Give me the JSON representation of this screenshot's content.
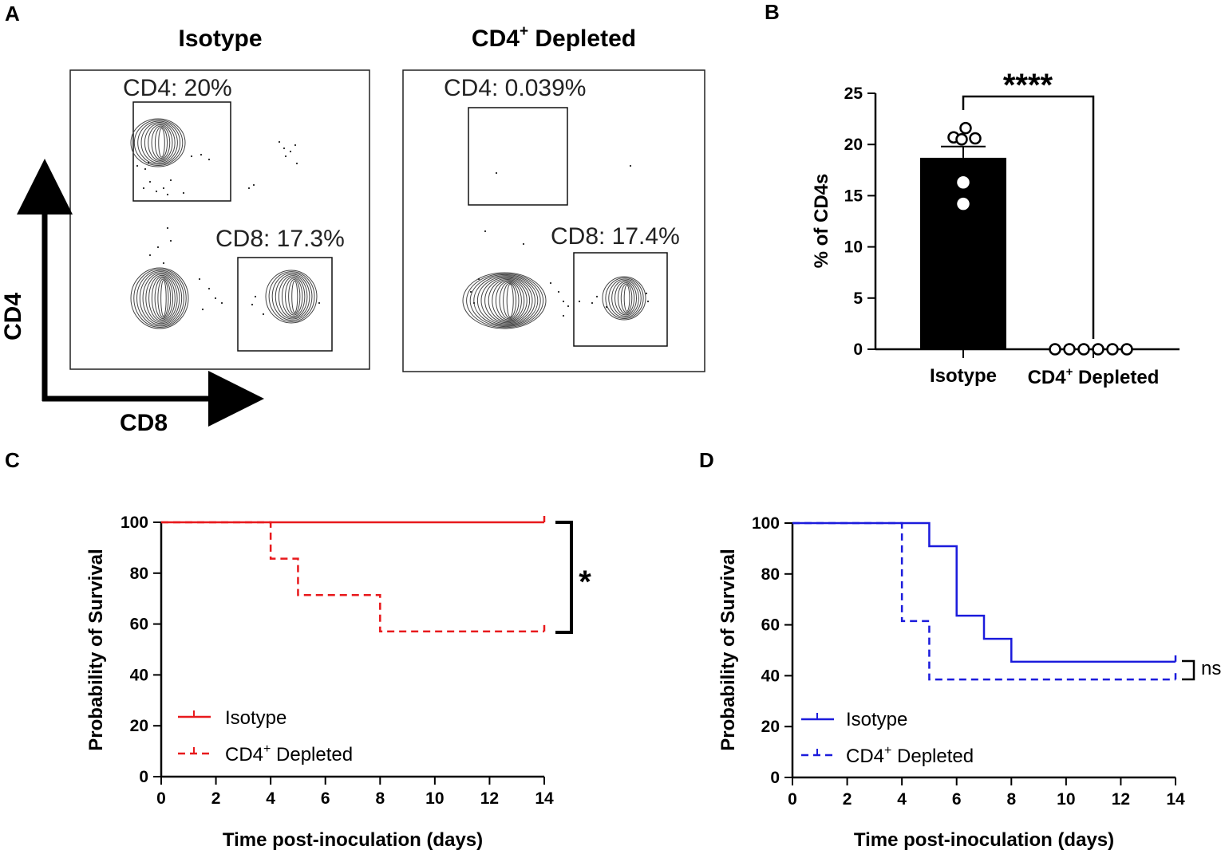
{
  "panels": {
    "a": {
      "label": "A",
      "plots": [
        {
          "title": "Isotype",
          "cd4_gate": "CD4: 20%",
          "cd8_gate": "CD8: 17.3%"
        },
        {
          "title": "CD4",
          "title_sup": "+",
          "title_rest": " Depleted",
          "cd4_gate": "CD4: 0.039%",
          "cd8_gate": "CD8: 17.4%"
        }
      ],
      "y_axis_label": "CD4",
      "x_axis_label": "CD8"
    },
    "b": {
      "label": "B"
    },
    "c": {
      "label": "C"
    },
    "d": {
      "label": "D"
    }
  },
  "chart_data": [
    {
      "panel": "B",
      "type": "bar",
      "categories": [
        "Isotype",
        "CD4+ Depleted"
      ],
      "category_labels": [
        {
          "text": "Isotype",
          "sup": "",
          "rest": ""
        },
        {
          "text": "CD4",
          "sup": "+",
          "rest": " Depleted"
        }
      ],
      "values": [
        18.7,
        0
      ],
      "error_sem": [
        1.1,
        0
      ],
      "points": [
        [
          21.6,
          20.7,
          20.6,
          20.5,
          16.3,
          14.2
        ],
        [
          0,
          0,
          0,
          0,
          0,
          0
        ]
      ],
      "ylabel": "% of CD4s",
      "ylim": [
        0,
        25
      ],
      "yticks": [
        "0",
        "5",
        "10",
        "15",
        "20",
        "25"
      ],
      "significance": "****",
      "colors": {
        "bar_0": "#000000",
        "bar_1": "#ffffff"
      }
    },
    {
      "panel": "C",
      "type": "line",
      "subtype": "kaplan-meier",
      "xlabel": "Time post-inoculation (days)",
      "ylabel": "Probability of Survival",
      "xlim": [
        0,
        14
      ],
      "ylim": [
        0,
        100
      ],
      "xticks": [
        "0",
        "2",
        "4",
        "6",
        "8",
        "10",
        "12",
        "14"
      ],
      "yticks": [
        "0",
        "20",
        "40",
        "60",
        "80",
        "100"
      ],
      "series": [
        {
          "name": "Isotype",
          "legend_text": "Isotype",
          "legend_sup": "",
          "legend_rest": "",
          "color": "#e8191c",
          "dashed": false,
          "steps": [
            [
              0,
              100
            ],
            [
              14,
              100
            ]
          ]
        },
        {
          "name": "CD4+ Depleted",
          "legend_text": "CD4",
          "legend_sup": "+",
          "legend_rest": " Depleted",
          "color": "#e8191c",
          "dashed": true,
          "steps": [
            [
              0,
              100
            ],
            [
              4,
              85.7
            ],
            [
              5,
              71.4
            ],
            [
              8,
              57.1
            ],
            [
              14,
              57.1
            ]
          ]
        }
      ],
      "significance": "*"
    },
    {
      "panel": "D",
      "type": "line",
      "subtype": "kaplan-meier",
      "xlabel": "Time post-inoculation (days)",
      "ylabel": "Probability of Survival",
      "xlim": [
        0,
        14
      ],
      "ylim": [
        0,
        100
      ],
      "xticks": [
        "0",
        "2",
        "4",
        "6",
        "8",
        "10",
        "12",
        "14"
      ],
      "yticks": [
        "0",
        "20",
        "40",
        "60",
        "80",
        "100"
      ],
      "series": [
        {
          "name": "Isotype",
          "legend_text": "Isotype",
          "legend_sup": "",
          "legend_rest": "",
          "color": "#1b1bdc",
          "dashed": false,
          "steps": [
            [
              0,
              100
            ],
            [
              5,
              90.9
            ],
            [
              6,
              63.6
            ],
            [
              7,
              54.5
            ],
            [
              8,
              45.5
            ],
            [
              14,
              45.5
            ]
          ]
        },
        {
          "name": "CD4+ Depleted",
          "legend_text": "CD4",
          "legend_sup": "+",
          "legend_rest": " Depleted",
          "color": "#1b1bdc",
          "dashed": true,
          "steps": [
            [
              0,
              100
            ],
            [
              4,
              61.5
            ],
            [
              5,
              38.5
            ],
            [
              14,
              38.5
            ]
          ]
        }
      ],
      "significance": "ns"
    }
  ]
}
